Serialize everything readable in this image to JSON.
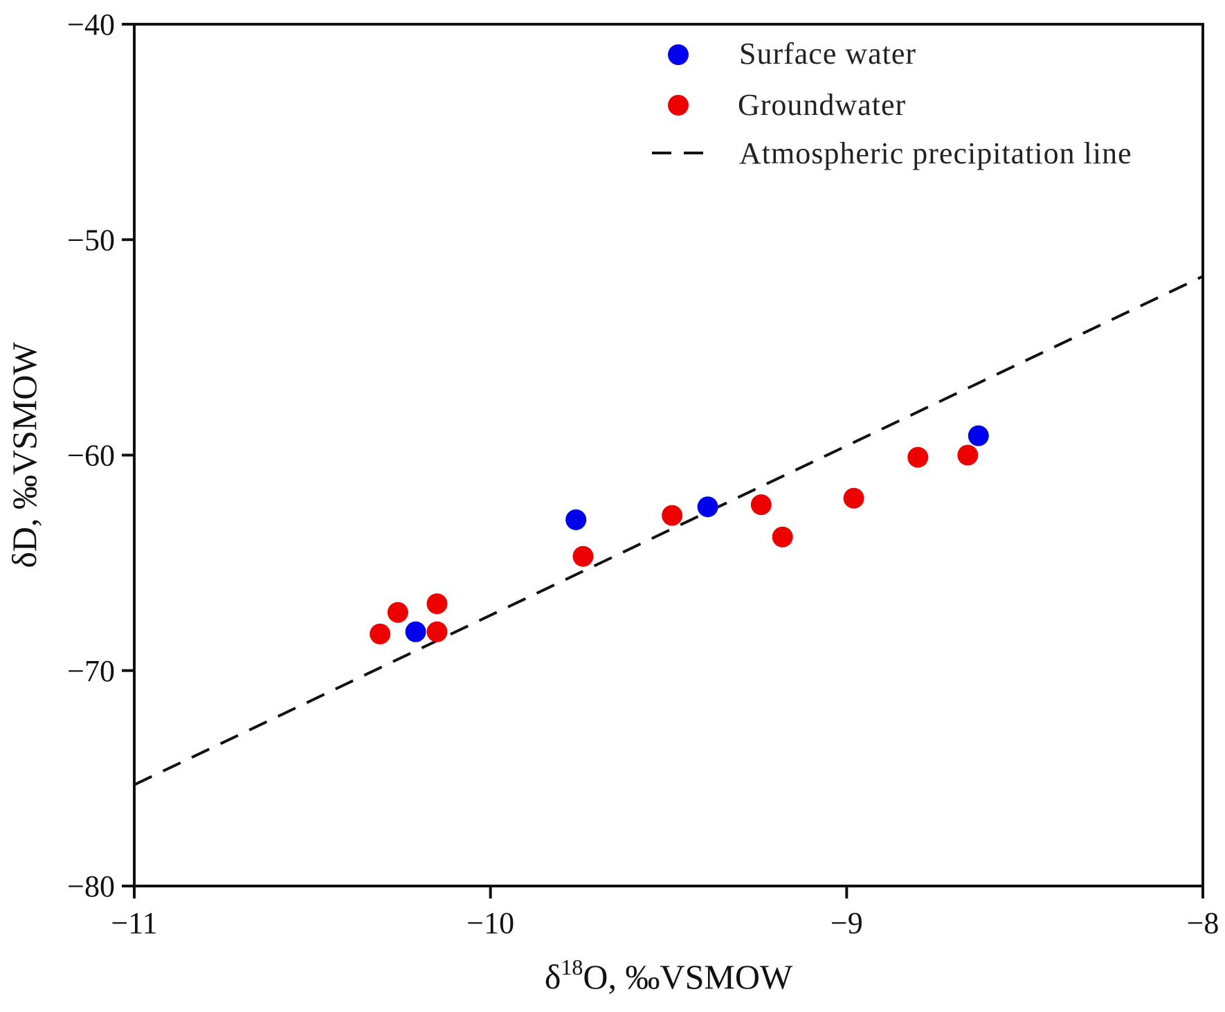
{
  "chart_data": {
    "type": "scatter",
    "title": "",
    "xlabel": {
      "prefix": "δ",
      "superscript": "18",
      "suffix": "O, ‰VSMOW"
    },
    "ylabel": "δD, ‰VSMOW",
    "xlim": [
      -11,
      -8
    ],
    "ylim": [
      -80,
      -40
    ],
    "xticks": [
      -11,
      -10,
      -9,
      -8
    ],
    "yticks": [
      -80,
      -70,
      -60,
      -50,
      -40
    ],
    "xtick_labels": [
      "−11",
      "−10",
      "−9",
      "−8"
    ],
    "ytick_labels": [
      "−80",
      "−70",
      "−60",
      "−50",
      "−40"
    ],
    "grid": false,
    "legend_position": "top-right",
    "series": [
      {
        "name": "Surface water",
        "color": "#0000ee",
        "marker": "circle",
        "points": [
          {
            "x": -10.21,
            "y": -68.2
          },
          {
            "x": -9.76,
            "y": -63.0
          },
          {
            "x": -9.39,
            "y": -62.4
          },
          {
            "x": -8.63,
            "y": -59.1
          }
        ]
      },
      {
        "name": "Groundwater",
        "color": "#ee0000",
        "marker": "circle",
        "points": [
          {
            "x": -10.31,
            "y": -68.3
          },
          {
            "x": -10.26,
            "y": -67.3
          },
          {
            "x": -10.15,
            "y": -66.9
          },
          {
            "x": -10.15,
            "y": -68.2
          },
          {
            "x": -9.74,
            "y": -64.7
          },
          {
            "x": -9.49,
            "y": -62.8
          },
          {
            "x": -9.24,
            "y": -62.3
          },
          {
            "x": -9.18,
            "y": -63.8
          },
          {
            "x": -8.98,
            "y": -62.0
          },
          {
            "x": -8.8,
            "y": -60.1
          },
          {
            "x": -8.66,
            "y": -60.0
          }
        ]
      }
    ],
    "lines": [
      {
        "name": "Atmospheric precipitation line",
        "style": "dashed",
        "color": "#111111",
        "x": [
          -11,
          -8
        ],
        "y": [
          -75.3,
          -51.7
        ]
      }
    ]
  }
}
